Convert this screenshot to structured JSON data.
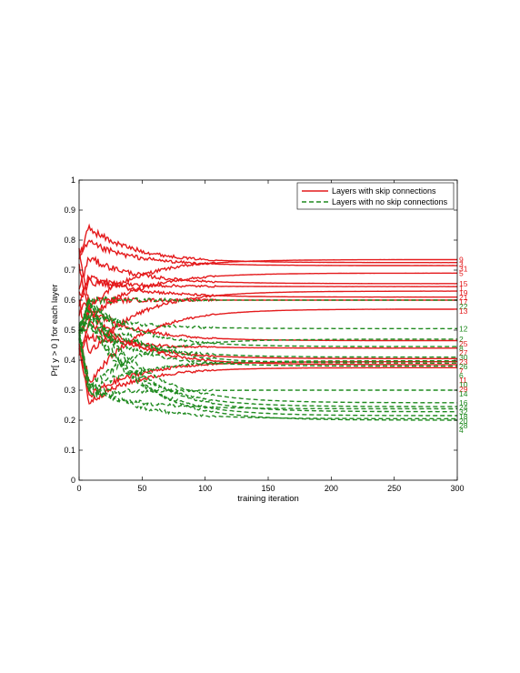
{
  "chart_data": {
    "type": "line",
    "xlabel": "training iteration",
    "ylabel": "Pr[ y > 0 ] for each layer",
    "xlim": [
      0,
      300
    ],
    "ylim": [
      0,
      1
    ],
    "xticks": [
      "0",
      "50",
      "100",
      "150",
      "200",
      "250",
      "300"
    ],
    "yticks": [
      "0",
      "0.1",
      "0.2",
      "0.3",
      "0.4",
      "0.5",
      "0.6",
      "0.7",
      "0.8",
      "0.9",
      "1"
    ],
    "grid": false,
    "legend_position": "top-right",
    "legend": [
      {
        "label": "Layers with skip connections",
        "color": "#e41a1c",
        "style": "solid"
      },
      {
        "label": "Layers with no skip connections",
        "color": "#1f8a1f",
        "style": "dashed"
      }
    ],
    "series": [
      {
        "name": "9",
        "group": "skip",
        "start": 0.76,
        "final": 0.735
      },
      {
        "name": "3",
        "group": "skip",
        "start": 0.74,
        "final": 0.725
      },
      {
        "name": "31",
        "group": "skip",
        "start": 0.75,
        "final": 0.715
      },
      {
        "name": "5",
        "group": "skip",
        "start": 0.72,
        "final": 0.69
      },
      {
        "name": "15",
        "group": "skip",
        "start": 0.64,
        "final": 0.655
      },
      {
        "name": "1",
        "group": "skip",
        "start": 0.62,
        "final": 0.645
      },
      {
        "name": "19",
        "group": "skip",
        "start": 0.6,
        "final": 0.63
      },
      {
        "name": "21",
        "group": "skip",
        "start": 0.58,
        "final": 0.61
      },
      {
        "name": "17",
        "group": "skip",
        "start": 0.56,
        "final": 0.6
      },
      {
        "name": "13",
        "group": "skip",
        "start": 0.5,
        "final": 0.57
      },
      {
        "name": "25",
        "group": "skip",
        "start": 0.47,
        "final": 0.465
      },
      {
        "name": "27",
        "group": "skip",
        "start": 0.44,
        "final": 0.44
      },
      {
        "name": "29",
        "group": "skip",
        "start": 0.44,
        "final": 0.375
      },
      {
        "name": "23",
        "group": "skip",
        "start": 0.42,
        "final": 0.405
      },
      {
        "name": "11",
        "group": "skip",
        "start": 0.52,
        "final": 0.385
      },
      {
        "name": "7",
        "group": "skip",
        "start": 0.46,
        "final": 0.395
      },
      {
        "name": "22",
        "group": "no-skip",
        "start": 0.5,
        "final": 0.6
      },
      {
        "name": "12",
        "group": "no-skip",
        "start": 0.51,
        "final": 0.505
      },
      {
        "name": "2",
        "group": "no-skip",
        "start": 0.49,
        "final": 0.47
      },
      {
        "name": "8",
        "group": "no-skip",
        "start": 0.49,
        "final": 0.445
      },
      {
        "name": "30",
        "group": "no-skip",
        "start": 0.5,
        "final": 0.41
      },
      {
        "name": "26",
        "group": "no-skip",
        "start": 0.48,
        "final": 0.398
      },
      {
        "name": "6",
        "group": "no-skip",
        "start": 0.5,
        "final": 0.39
      },
      {
        "name": "10",
        "group": "no-skip",
        "start": 0.48,
        "final": 0.38
      },
      {
        "name": "14",
        "group": "no-skip",
        "start": 0.47,
        "final": 0.3
      },
      {
        "name": "16",
        "group": "no-skip",
        "start": 0.5,
        "final": 0.258
      },
      {
        "name": "24",
        "group": "no-skip",
        "start": 0.49,
        "final": 0.245
      },
      {
        "name": "32",
        "group": "no-skip",
        "start": 0.48,
        "final": 0.238
      },
      {
        "name": "18",
        "group": "no-skip",
        "start": 0.5,
        "final": 0.228
      },
      {
        "name": "20",
        "group": "no-skip",
        "start": 0.49,
        "final": 0.215
      },
      {
        "name": "28",
        "group": "no-skip",
        "start": 0.5,
        "final": 0.205
      },
      {
        "name": "4",
        "group": "no-skip",
        "start": 0.47,
        "final": 0.2
      }
    ]
  }
}
